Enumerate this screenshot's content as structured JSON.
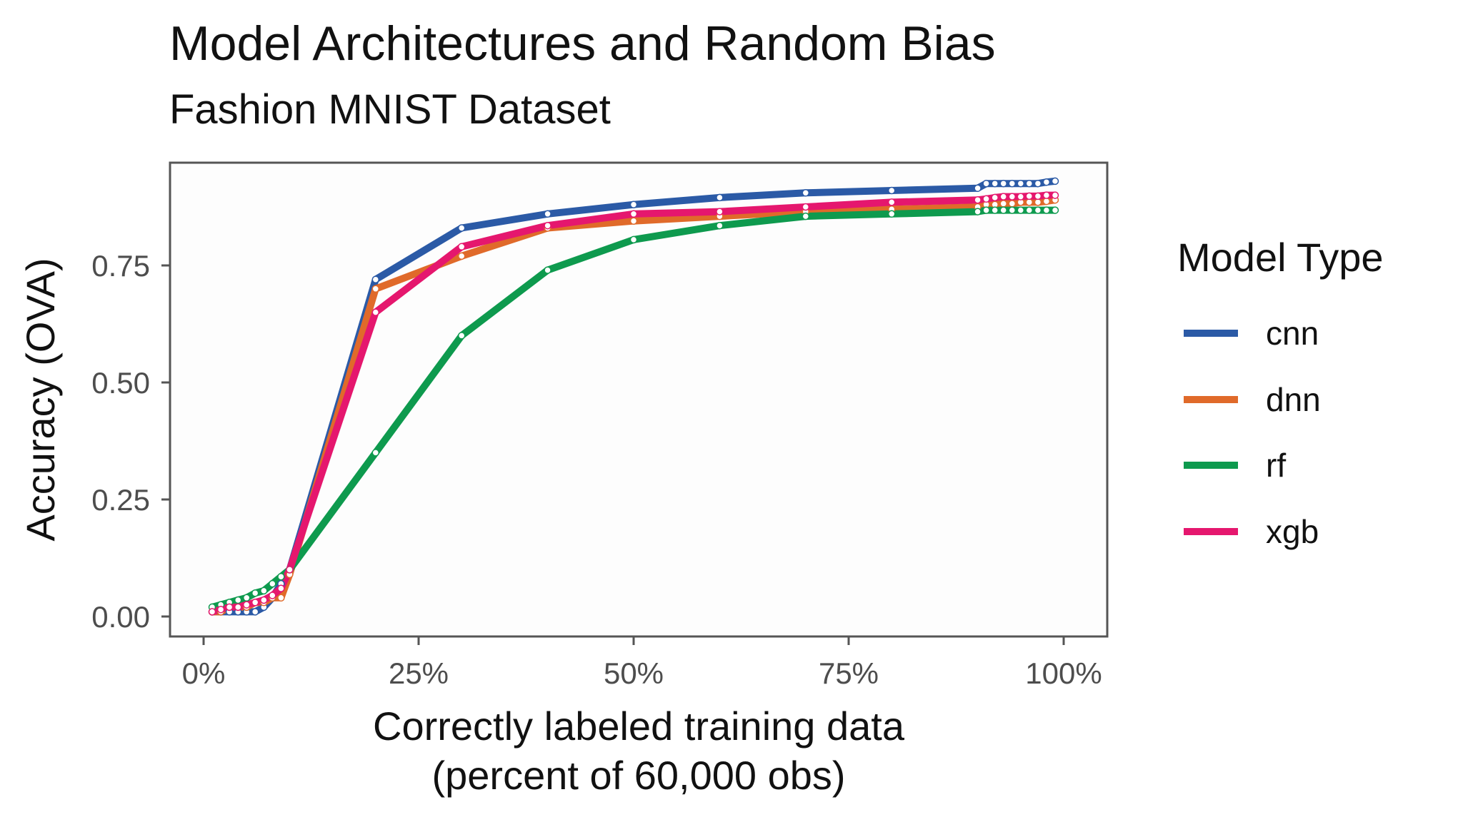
{
  "chart_data": {
    "type": "line",
    "title": "Model Architectures and Random Bias",
    "subtitle": "Fashion MNIST Dataset",
    "xlabel_line1": "Correctly labeled training data",
    "xlabel_line2": "(percent of 60,000 obs)",
    "ylabel": "Accuracy (OVA)",
    "xlim": [
      0,
      100
    ],
    "ylim": [
      0,
      0.93
    ],
    "x_ticks": [
      0,
      25,
      50,
      75,
      100
    ],
    "x_tick_labels": [
      "0%",
      "25%",
      "50%",
      "75%",
      "100%"
    ],
    "y_ticks": [
      0,
      0.25,
      0.5,
      0.75
    ],
    "y_tick_labels": [
      "0.00",
      "0.25",
      "0.50",
      "0.75"
    ],
    "grid": false,
    "legend": {
      "title": "Model Type",
      "position": "right"
    },
    "x": [
      1,
      2,
      3,
      4,
      5,
      6,
      7,
      8,
      9,
      10,
      20,
      30,
      40,
      50,
      60,
      70,
      80,
      90,
      91,
      92,
      93,
      94,
      95,
      96,
      97,
      98,
      99
    ],
    "series": [
      {
        "name": "cnn",
        "color": "#2b5aa6",
        "values": [
          0.01,
          0.01,
          0.01,
          0.01,
          0.01,
          0.01,
          0.02,
          0.04,
          0.07,
          0.1,
          0.72,
          0.83,
          0.86,
          0.88,
          0.895,
          0.905,
          0.91,
          0.915,
          0.925,
          0.925,
          0.925,
          0.925,
          0.925,
          0.925,
          0.925,
          0.928,
          0.93
        ]
      },
      {
        "name": "dnn",
        "color": "#e06a2a",
        "values": [
          0.01,
          0.01,
          0.02,
          0.02,
          0.02,
          0.03,
          0.03,
          0.04,
          0.04,
          0.09,
          0.7,
          0.77,
          0.83,
          0.845,
          0.855,
          0.865,
          0.87,
          0.875,
          0.88,
          0.88,
          0.882,
          0.882,
          0.885,
          0.885,
          0.885,
          0.887,
          0.89
        ]
      },
      {
        "name": "rf",
        "color": "#0e9a4e",
        "values": [
          0.02,
          0.025,
          0.03,
          0.035,
          0.04,
          0.05,
          0.055,
          0.07,
          0.085,
          0.1,
          0.35,
          0.6,
          0.74,
          0.805,
          0.835,
          0.855,
          0.86,
          0.865,
          0.868,
          0.868,
          0.868,
          0.868,
          0.868,
          0.868,
          0.868,
          0.868,
          0.868
        ]
      },
      {
        "name": "xgb",
        "color": "#e5176e",
        "values": [
          0.01,
          0.015,
          0.02,
          0.02,
          0.025,
          0.03,
          0.035,
          0.045,
          0.06,
          0.1,
          0.65,
          0.79,
          0.835,
          0.86,
          0.865,
          0.875,
          0.885,
          0.89,
          0.892,
          0.895,
          0.897,
          0.897,
          0.897,
          0.898,
          0.898,
          0.9,
          0.9
        ]
      }
    ]
  }
}
